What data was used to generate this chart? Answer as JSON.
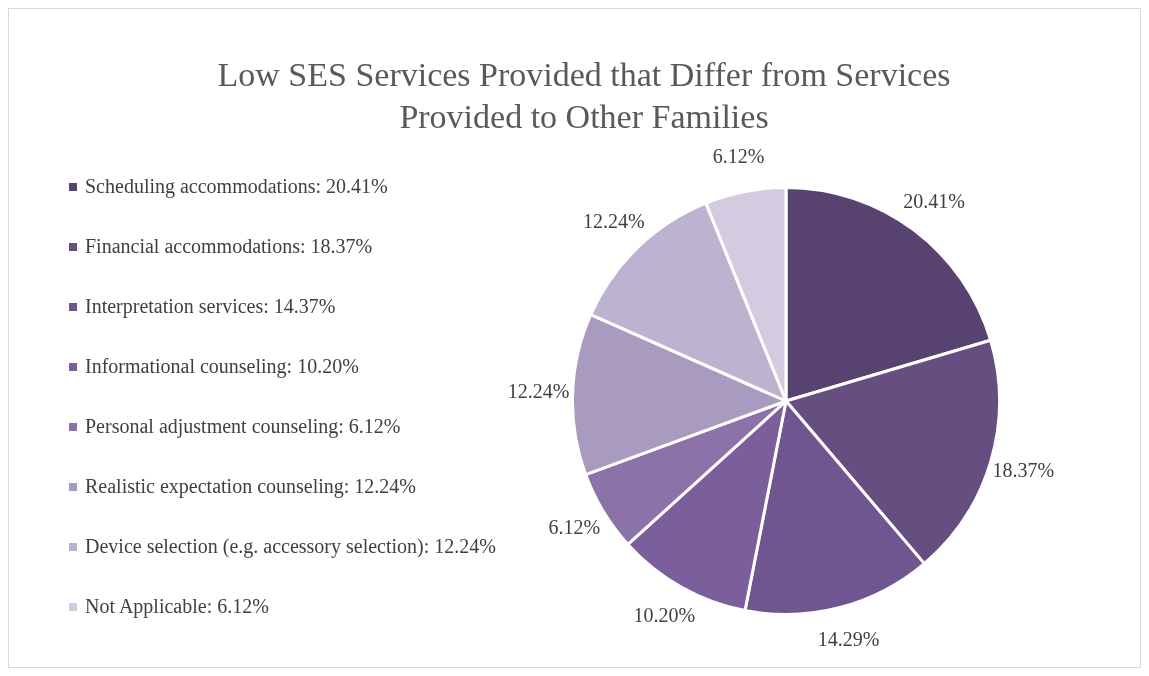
{
  "chart_data": {
    "type": "pie",
    "title": "Low SES Services Provided that Differ from Services Provided to Other Families",
    "categories": [
      "Scheduling accommodations: 20.41%",
      "Financial accommodations: 18.37%",
      "Interpretation services: 14.37%",
      "Informational counseling: 10.20%",
      "Personal adjustment counseling: 6.12%",
      "Realistic expectation counseling: 12.24%",
      "Device selection (e.g. accessory selection): 12.24%",
      "Not Applicable: 6.12%"
    ],
    "values": [
      20.41,
      18.37,
      14.29,
      10.2,
      6.12,
      12.24,
      12.24,
      6.12
    ],
    "value_labels": [
      "20.41%",
      "18.37%",
      "14.29%",
      "10.20%",
      "6.12%",
      "12.24%",
      "12.24%",
      "6.12%"
    ],
    "colors": [
      "#58426f",
      "#664f80",
      "#6f5690",
      "#7b5e9c",
      "#8b73aa",
      "#a99ac0",
      "#bdb2cf",
      "#d3cbdf"
    ],
    "legend": "left"
  }
}
